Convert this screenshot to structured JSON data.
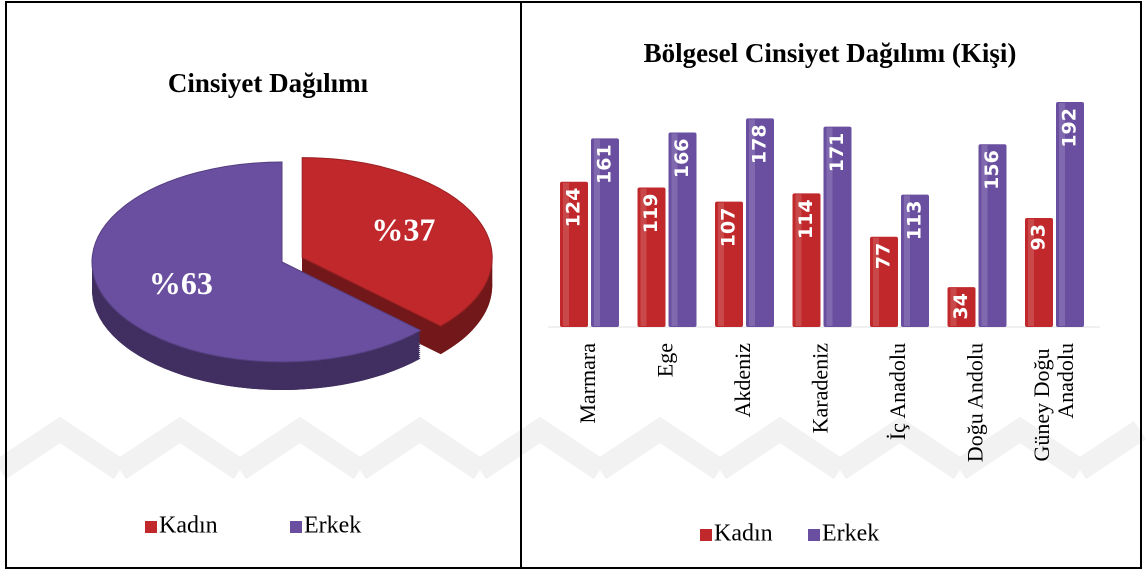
{
  "chart_data": [
    {
      "type": "pie",
      "title": "Cinsiyet Dağılımı",
      "categories": [
        "Kadın",
        "Erkek"
      ],
      "values": [
        37,
        63
      ],
      "value_labels": [
        "%37",
        "%63"
      ],
      "colors": [
        "#c0282b",
        "#6a4fa0"
      ],
      "legend": "bottom"
    },
    {
      "type": "bar",
      "title": "Bölgesel Cinsiyet Dağılımı (Kişi)",
      "categories": [
        "Marmara",
        "Ege",
        "Akdeniz",
        "Karadeniz",
        "İç Anadolu",
        "Doğu Andolu",
        "Güney Doğu Anadolu"
      ],
      "series": [
        {
          "name": "Kadın",
          "color": "#c0282b",
          "values": [
            124,
            119,
            107,
            114,
            77,
            34,
            93
          ]
        },
        {
          "name": "Erkek",
          "color": "#6a4fa0",
          "values": [
            161,
            166,
            178,
            171,
            113,
            156,
            192
          ]
        }
      ],
      "legend": "bottom"
    }
  ]
}
